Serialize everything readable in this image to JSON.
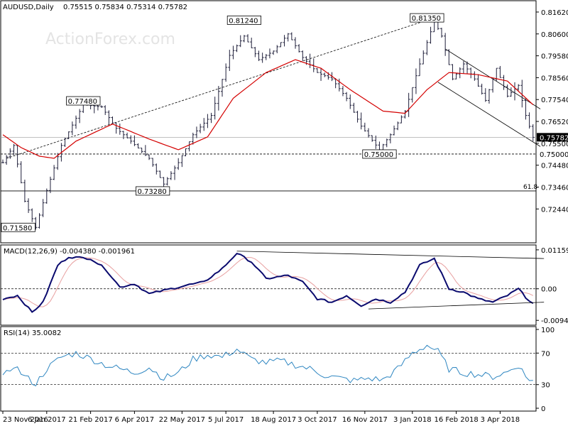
{
  "chart_data": {
    "type": "candlestick",
    "symbol_header": "AUDUSD,Daily",
    "ohlc_header": "0.75515 0.75834 0.75314 0.75782",
    "watermark": "ActionForex.com",
    "price_axis": {
      "range": [
        0.7106,
        0.8185
      ],
      "ticks": [
        "0.81620",
        "0.80600",
        "0.79580",
        "0.78560",
        "0.77540",
        "0.76520",
        "0.75500",
        "0.74480",
        "0.73460",
        "0.72440"
      ],
      "current_price_label": "0.75782",
      "level_label": "0.75000",
      "fib_label": "61.8"
    },
    "annotations": [
      {
        "text": "0.81240",
        "x": 66,
        "y": 0.8124
      },
      {
        "text": "0.81350",
        "x": 116,
        "y": 0.8135
      },
      {
        "text": "0.77480",
        "x": 22,
        "y": 0.7748
      },
      {
        "text": "0.73280",
        "x": 41,
        "y": 0.7328
      },
      {
        "text": "0.75000",
        "x": 103,
        "y": 0.75
      },
      {
        "text": "0.71580",
        "x": 6,
        "y": 0.7158
      }
    ],
    "x_axis_labels": [
      "23 Nov 2016",
      "6 Jan 2017",
      "21 Feb 2017",
      "6 Apr 2017",
      "22 May 2017",
      "5 Jul 2017",
      "18 Aug 2017",
      "3 Oct 2017",
      "16 Nov 2017",
      "3 Jan 2018",
      "16 Feb 2018",
      "3 Apr 2018"
    ],
    "close_anchors": [
      [
        0,
        0.746
      ],
      [
        3,
        0.754
      ],
      [
        6,
        0.728
      ],
      [
        9,
        0.7158
      ],
      [
        12,
        0.733
      ],
      [
        16,
        0.754
      ],
      [
        22,
        0.773
      ],
      [
        27,
        0.772
      ],
      [
        31,
        0.762
      ],
      [
        35,
        0.756
      ],
      [
        40,
        0.748
      ],
      [
        44,
        0.736
      ],
      [
        48,
        0.746
      ],
      [
        52,
        0.759
      ],
      [
        57,
        0.768
      ],
      [
        62,
        0.796
      ],
      [
        66,
        0.805
      ],
      [
        70,
        0.794
      ],
      [
        74,
        0.798
      ],
      [
        78,
        0.806
      ],
      [
        82,
        0.795
      ],
      [
        86,
        0.788
      ],
      [
        90,
        0.785
      ],
      [
        94,
        0.776
      ],
      [
        98,
        0.763
      ],
      [
        103,
        0.752
      ],
      [
        106,
        0.759
      ],
      [
        110,
        0.77
      ],
      [
        114,
        0.792
      ],
      [
        118,
        0.812
      ],
      [
        120,
        0.805
      ],
      [
        123,
        0.785
      ],
      [
        126,
        0.792
      ],
      [
        129,
        0.785
      ],
      [
        132,
        0.775
      ],
      [
        135,
        0.79
      ],
      [
        138,
        0.777
      ],
      [
        141,
        0.782
      ],
      [
        143,
        0.768
      ],
      [
        145,
        0.7578
      ]
    ],
    "ma_anchors": [
      [
        0,
        0.759
      ],
      [
        5,
        0.753
      ],
      [
        10,
        0.749
      ],
      [
        14,
        0.748
      ],
      [
        20,
        0.756
      ],
      [
        30,
        0.764
      ],
      [
        40,
        0.757
      ],
      [
        48,
        0.752
      ],
      [
        56,
        0.758
      ],
      [
        63,
        0.776
      ],
      [
        72,
        0.788
      ],
      [
        80,
        0.794
      ],
      [
        87,
        0.79
      ],
      [
        95,
        0.78
      ],
      [
        104,
        0.77
      ],
      [
        110,
        0.769
      ],
      [
        116,
        0.78
      ],
      [
        122,
        0.788
      ],
      [
        130,
        0.787
      ],
      [
        138,
        0.784
      ],
      [
        145,
        0.773
      ]
    ],
    "trendlines": [
      {
        "style": "dashed",
        "from": [
          1,
          0.748
        ],
        "to": [
          118,
          0.8135
        ]
      },
      {
        "style": "solid",
        "from": [
          121,
          0.799
        ],
        "to": [
          147,
          0.771
        ]
      },
      {
        "style": "solid",
        "from": [
          119,
          0.7835
        ],
        "to": [
          147,
          0.7535
        ]
      }
    ],
    "horizontal_lines": [
      {
        "style": "dashed",
        "y": 0.75
      },
      {
        "style": "solid",
        "y": 0.7328
      }
    ],
    "macd": {
      "title": "MACD(12,26,9) -0.004380 -0.001961",
      "range": [
        -0.0102,
        0.0122
      ],
      "ticks": [
        "0.01159",
        "0.00",
        "-0.00940"
      ],
      "line_anchors": [
        [
          0,
          -0.003
        ],
        [
          4,
          -0.002
        ],
        [
          8,
          -0.007
        ],
        [
          11,
          -0.004
        ],
        [
          15,
          0.007
        ],
        [
          18,
          0.0095
        ],
        [
          24,
          0.009
        ],
        [
          28,
          0.006
        ],
        [
          32,
          0.0005
        ],
        [
          36,
          0.0015
        ],
        [
          40,
          -0.0015
        ],
        [
          44,
          -0.0005
        ],
        [
          50,
          0.001
        ],
        [
          55,
          0.002
        ],
        [
          60,
          0.006
        ],
        [
          64,
          0.0106
        ],
        [
          68,
          0.008
        ],
        [
          72,
          0.003
        ],
        [
          78,
          0.004
        ],
        [
          82,
          0.002
        ],
        [
          86,
          -0.003
        ],
        [
          90,
          -0.004
        ],
        [
          94,
          -0.002
        ],
        [
          98,
          -0.005
        ],
        [
          102,
          -0.003
        ],
        [
          106,
          -0.004
        ],
        [
          110,
          -0.001
        ],
        [
          114,
          0.007
        ],
        [
          118,
          0.009
        ],
        [
          122,
          0.0
        ],
        [
          126,
          -0.001
        ],
        [
          130,
          -0.003
        ],
        [
          134,
          -0.004
        ],
        [
          138,
          -0.002
        ],
        [
          141,
          0.0
        ],
        [
          143,
          -0.0025
        ],
        [
          145,
          -0.0044
        ]
      ],
      "trendlines": [
        {
          "from": [
            64,
            0.0112
          ],
          "to": [
            148,
            0.009
          ]
        },
        {
          "from": [
            100,
            -0.006
          ],
          "to": [
            148,
            -0.004
          ]
        }
      ]
    },
    "rsi": {
      "title": "RSI(14) 35.0082",
      "range": [
        0,
        100
      ],
      "ticks": [
        "100",
        "70",
        "30",
        "0"
      ],
      "anchors": [
        [
          0,
          38
        ],
        [
          3,
          55
        ],
        [
          6,
          40
        ],
        [
          9,
          31
        ],
        [
          12,
          50
        ],
        [
          16,
          65
        ],
        [
          20,
          70
        ],
        [
          24,
          63
        ],
        [
          28,
          55
        ],
        [
          32,
          50
        ],
        [
          36,
          45
        ],
        [
          40,
          52
        ],
        [
          44,
          38
        ],
        [
          48,
          45
        ],
        [
          52,
          62
        ],
        [
          56,
          68
        ],
        [
          60,
          65
        ],
        [
          64,
          75
        ],
        [
          68,
          62
        ],
        [
          72,
          58
        ],
        [
          76,
          60
        ],
        [
          80,
          55
        ],
        [
          84,
          50
        ],
        [
          88,
          42
        ],
        [
          92,
          38
        ],
        [
          96,
          35
        ],
        [
          100,
          38
        ],
        [
          104,
          36
        ],
        [
          108,
          50
        ],
        [
          112,
          70
        ],
        [
          116,
          80
        ],
        [
          119,
          72
        ],
        [
          122,
          50
        ],
        [
          126,
          45
        ],
        [
          130,
          43
        ],
        [
          134,
          40
        ],
        [
          138,
          46
        ],
        [
          141,
          55
        ],
        [
          143,
          40
        ],
        [
          145,
          35
        ]
      ]
    }
  }
}
